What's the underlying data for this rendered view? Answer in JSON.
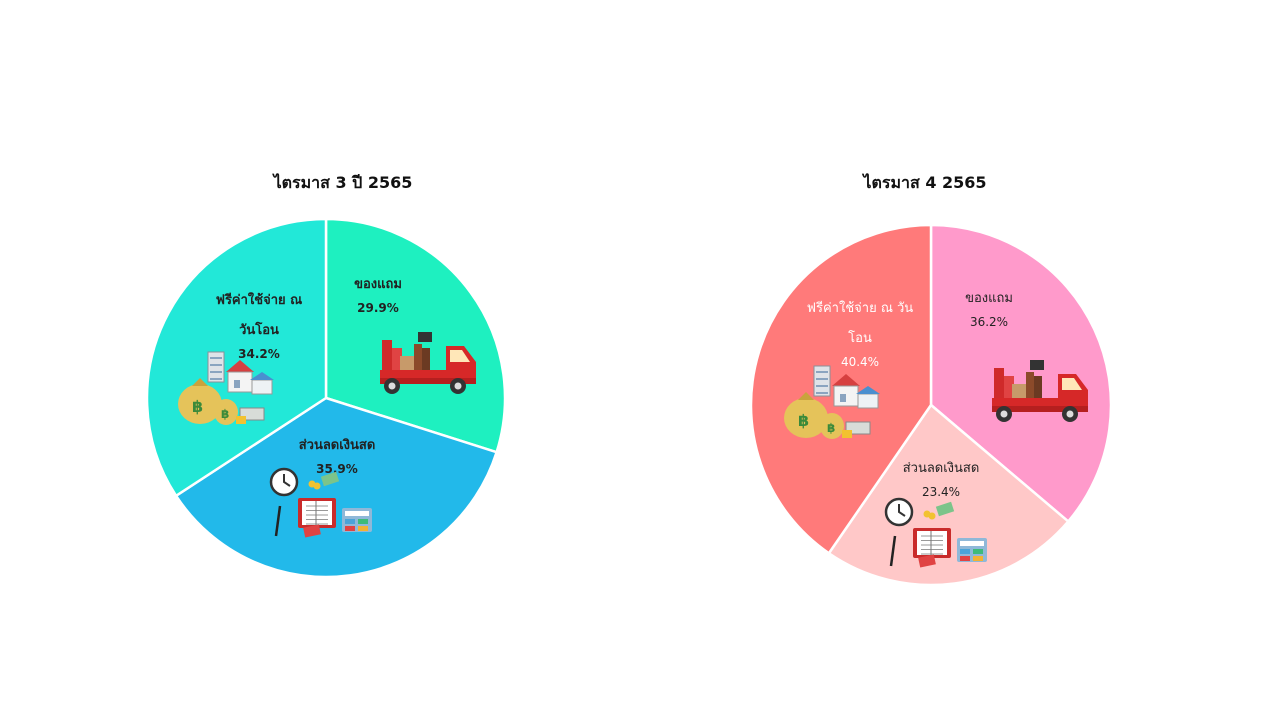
{
  "chart_data": [
    {
      "type": "pie",
      "title": "ไตรมาส 3 ปี 2565",
      "categories": [
        "ของแถม",
        "ส่วนลดเงินสด",
        "ฟรีค่าใช้จ่าย ณ วันโอน"
      ],
      "values": [
        29.9,
        35.9,
        34.2
      ],
      "display_labels": [
        [
          "ของแถม"
        ],
        [
          "ส่วนลดเงินสด"
        ],
        [
          "ฟรีค่าใช้จ่าย ณ",
          "วันโอน"
        ]
      ],
      "percent_labels": [
        "29.9%",
        "35.9%",
        "34.2%"
      ],
      "colors": [
        "#1ef0c0",
        "#22b9ea",
        "#22e8d8"
      ],
      "label_color": "#222222",
      "icons": [
        "truck-icon",
        "calendar-money-icon",
        "money-house-icon"
      ],
      "start": "12 o'clock",
      "direction": "clockwise"
    },
    {
      "type": "pie",
      "title": "ไตรมาส 4 2565",
      "categories": [
        "ของแถม",
        "ส่วนลดเงินสด",
        "ฟรีค่าใช้จ่าย ณ วันโอน"
      ],
      "values": [
        36.2,
        23.4,
        40.4
      ],
      "display_labels": [
        [
          "ของแถม"
        ],
        [
          "ส่วนลดเงินสด"
        ],
        [
          "ฟรีค่าใช้จ่าย ณ วัน",
          "โอน"
        ]
      ],
      "percent_labels": [
        "36.2%",
        "23.4%",
        "40.4%"
      ],
      "colors": [
        "#ff9acb",
        "#ffc8c8",
        "#ff7a7a"
      ],
      "label_colors": [
        "#222222",
        "#222222",
        "#ffffff"
      ],
      "icons": [
        "truck-icon",
        "calendar-money-icon",
        "money-house-icon"
      ],
      "start": "12 o'clock",
      "direction": "clockwise"
    }
  ]
}
